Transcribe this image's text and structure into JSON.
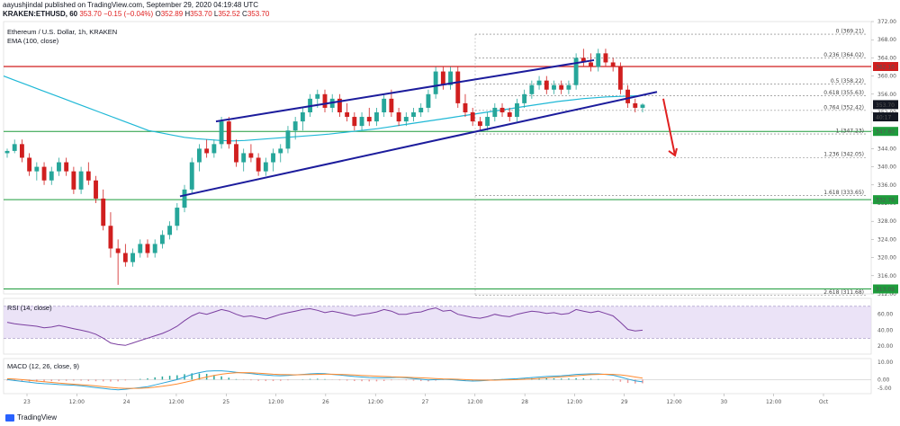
{
  "header": {
    "line1": "aayushjindal published on TradingView.com, September 29, 2020 04:19:48 UTC",
    "symbol": "KRAKEN:ETHUSD, 60",
    "price": "353.70",
    "change": "−0.15 (−0.04%)",
    "o_label": "O",
    "o": "352.89",
    "h_label": "H",
    "h": "353.70",
    "l_label": "L",
    "l": "352.52",
    "c_label": "C",
    "c": "353.70"
  },
  "main_title": "Ethereum / U.S. Dollar, 1h, KRAKEN",
  "ema_label": "EMA (100, close)",
  "rsi_label": "RSI (14, close)",
  "macd_label": "MACD (12, 26, close, 9)",
  "logo_text": "TradingView",
  "colors": {
    "up": "#26a69a",
    "down": "#d01f1f",
    "trend": "#1c1c9c",
    "ema": "#1fb8d6",
    "support": "#1e9c3c",
    "resistance": "#d01f1f",
    "rsi_band": "#e6dcf5",
    "macd": "#2aa4d8",
    "signal": "#ff8a30",
    "arrow": "#e02020"
  },
  "chart_data": {
    "type": "candlestick",
    "price_axis": {
      "min": 312,
      "max": 372,
      "ticks": [
        372,
        368,
        364,
        360,
        356,
        352,
        348,
        344,
        340,
        336,
        332,
        328,
        324,
        320,
        316,
        312
      ]
    },
    "price_ticks": [
      "372.00",
      "368.00",
      "364.00",
      "360.00",
      "356.00",
      "352.00",
      "348.00",
      "344.00",
      "340.00",
      "336.00",
      "332.00",
      "328.00",
      "324.00",
      "320.00",
      "316.00",
      "312.00"
    ],
    "x_labels": [
      "23",
      "12:00",
      "24",
      "12:00",
      "25",
      "12:00",
      "26",
      "12:00",
      "27",
      "12:00",
      "28",
      "12:00",
      "29",
      "12:00",
      "30",
      "12:00",
      "Oct"
    ],
    "candles": [
      [
        343,
        344,
        342,
        343.5
      ],
      [
        343.5,
        346,
        343,
        345
      ],
      [
        345,
        346,
        341,
        342
      ],
      [
        342,
        343,
        338,
        339
      ],
      [
        339,
        341,
        337,
        340
      ],
      [
        340,
        341,
        336,
        337
      ],
      [
        337,
        340,
        336,
        339
      ],
      [
        339,
        342,
        338,
        341
      ],
      [
        341,
        342,
        338,
        339
      ],
      [
        339,
        340,
        334,
        335
      ],
      [
        335,
        340,
        334,
        339
      ],
      [
        339,
        341,
        336,
        337
      ],
      [
        337,
        338,
        332,
        333
      ],
      [
        333,
        335,
        326,
        327
      ],
      [
        327,
        330,
        320,
        322
      ],
      [
        322,
        324,
        314,
        321
      ],
      [
        321,
        323,
        318,
        319
      ],
      [
        319,
        322,
        318,
        321
      ],
      [
        321,
        324,
        320,
        323
      ],
      [
        323,
        324,
        320,
        321
      ],
      [
        321,
        324,
        320,
        323
      ],
      [
        323,
        326,
        322,
        325
      ],
      [
        325,
        328,
        324,
        327
      ],
      [
        327,
        332,
        326,
        331
      ],
      [
        331,
        336,
        330,
        335
      ],
      [
        335,
        342,
        334,
        341
      ],
      [
        341,
        345,
        339,
        344
      ],
      [
        344,
        346,
        342,
        343
      ],
      [
        343,
        346,
        342,
        345
      ],
      [
        345,
        351,
        344,
        350
      ],
      [
        350,
        351,
        344,
        345
      ],
      [
        345,
        346,
        340,
        341
      ],
      [
        341,
        344,
        339,
        343
      ],
      [
        343,
        345,
        341,
        342
      ],
      [
        342,
        343,
        338,
        339
      ],
      [
        339,
        342,
        338,
        341
      ],
      [
        341,
        344,
        339,
        343
      ],
      [
        343,
        345,
        341,
        344
      ],
      [
        344,
        349,
        343,
        348
      ],
      [
        348,
        351,
        346,
        350
      ],
      [
        350,
        353,
        348,
        352
      ],
      [
        352,
        356,
        351,
        355
      ],
      [
        355,
        357,
        353,
        356
      ],
      [
        356,
        357,
        352,
        353
      ],
      [
        353,
        356,
        352,
        355
      ],
      [
        355,
        356,
        351,
        352
      ],
      [
        352,
        354,
        350,
        351
      ],
      [
        351,
        352,
        348,
        349
      ],
      [
        349,
        352,
        348,
        351
      ],
      [
        351,
        353,
        349,
        350
      ],
      [
        350,
        353,
        349,
        352
      ],
      [
        352,
        356,
        351,
        355
      ],
      [
        355,
        357,
        351,
        352
      ],
      [
        352,
        353,
        349,
        350
      ],
      [
        350,
        352,
        349,
        351
      ],
      [
        351,
        353,
        350,
        352
      ],
      [
        352,
        354,
        351,
        353
      ],
      [
        353,
        357,
        352,
        356
      ],
      [
        356,
        362,
        355,
        361
      ],
      [
        361,
        362,
        357,
        358
      ],
      [
        358,
        362,
        357,
        361
      ],
      [
        361,
        362,
        353,
        354
      ],
      [
        354,
        356,
        351,
        352
      ],
      [
        352,
        353,
        349,
        350
      ],
      [
        350,
        351,
        348,
        349
      ],
      [
        349,
        352,
        348,
        351
      ],
      [
        351,
        354,
        350,
        353
      ],
      [
        353,
        354,
        351,
        352
      ],
      [
        352,
        353,
        350,
        351
      ],
      [
        351,
        355,
        350,
        354
      ],
      [
        354,
        357,
        353,
        356
      ],
      [
        356,
        359,
        355,
        358
      ],
      [
        358,
        360,
        357,
        359
      ],
      [
        359,
        360,
        356,
        357
      ],
      [
        357,
        359,
        356,
        358
      ],
      [
        358,
        359,
        356,
        357
      ],
      [
        357,
        359,
        356,
        358
      ],
      [
        358,
        365,
        357,
        364
      ],
      [
        364,
        366,
        362,
        363
      ],
      [
        363,
        365,
        361,
        362
      ],
      [
        362,
        366,
        361,
        365
      ],
      [
        365,
        366,
        362,
        363
      ],
      [
        363,
        364,
        361,
        362
      ],
      [
        362,
        363,
        356,
        357
      ],
      [
        357,
        358,
        353,
        354
      ],
      [
        354,
        355,
        352,
        353
      ],
      [
        353,
        354,
        352,
        353.7
      ]
    ],
    "ema_100": [
      360,
      359,
      358,
      357,
      356,
      355,
      354,
      353,
      352,
      351,
      350,
      349,
      348,
      347.5,
      347,
      346.5,
      346.2,
      346,
      345.8,
      345.7,
      345.8,
      346,
      346.2,
      346.4,
      346.6,
      346.8,
      347,
      347.2,
      347.5,
      347.8,
      348.1,
      348.4,
      348.8,
      349.2,
      349.6,
      350,
      350.4,
      350.8,
      351.2,
      351.6,
      352,
      352.4,
      352.8,
      353.2,
      353.6,
      354,
      354.4,
      354.7,
      355,
      355.2,
      355.4,
      355.5,
      355.6,
      355.7
    ],
    "trend_lines": {
      "upper": [
        [
          350,
          240
        ],
        [
          363.5,
          660
        ]
      ],
      "lower": [
        [
          333.5,
          200
        ],
        [
          356.5,
          730
        ]
      ]
    },
    "horizontal_levels": {
      "resistance": 362.1,
      "support_1": 347.8,
      "support_2": 332.76,
      "support_3": 313.09
    },
    "fibonacci": [
      {
        "label": "0 (369.21)",
        "value": 369.21
      },
      {
        "label": "0.236 (364.02)",
        "value": 364.02
      },
      {
        "label": "0.5 (358.22)",
        "value": 358.22
      },
      {
        "label": "0.618 (355.63)",
        "value": 355.63
      },
      {
        "label": "0.764 (352.42)",
        "value": 352.42
      },
      {
        "label": "1 (347.23)",
        "value": 347.23
      },
      {
        "label": "1.236 (342.05)",
        "value": 342.05
      },
      {
        "label": "1.618 (333.65)",
        "value": 333.65
      },
      {
        "label": "2.618 (311.68)",
        "value": 311.68
      }
    ],
    "price_badges": [
      {
        "text": "362.10",
        "value": 362.1,
        "color": "#d01f1f"
      },
      {
        "text": "353.70",
        "value": 353.7,
        "color": "#131722"
      },
      {
        "text": "40:17",
        "value": 351.0,
        "color": "#131722"
      },
      {
        "text": "347.80",
        "value": 347.8,
        "color": "#1e9c3c"
      },
      {
        "text": "332.76",
        "value": 332.76,
        "color": "#1e9c3c"
      },
      {
        "text": "313.09",
        "value": 313.09,
        "color": "#1e9c3c"
      }
    ],
    "rsi": {
      "ticks": [
        "60.00",
        "40.00",
        "20.00"
      ],
      "tick_values": [
        60,
        40,
        20
      ],
      "band": [
        30,
        70
      ],
      "values": [
        50,
        48,
        47,
        46,
        45,
        43,
        44,
        46,
        44,
        42,
        40,
        38,
        35,
        30,
        24,
        22,
        21,
        24,
        27,
        30,
        33,
        36,
        40,
        45,
        52,
        58,
        62,
        60,
        63,
        66,
        64,
        60,
        57,
        58,
        56,
        54,
        57,
        60,
        62,
        64,
        66,
        67,
        65,
        62,
        64,
        62,
        60,
        58,
        60,
        61,
        63,
        66,
        64,
        60,
        60,
        62,
        63,
        66,
        68,
        64,
        65,
        60,
        58,
        56,
        55,
        57,
        60,
        58,
        57,
        60,
        62,
        64,
        63,
        61,
        62,
        60,
        61,
        66,
        64,
        62,
        64,
        61,
        58,
        50,
        41,
        39,
        40
      ]
    },
    "macd": {
      "ticks": [
        "10.00",
        "0.00",
        "-5.00"
      ],
      "tick_values": [
        10,
        0,
        -5
      ],
      "macd_line": [
        0,
        -0.5,
        -1,
        -1.5,
        -2,
        -2.3,
        -2.5,
        -2.8,
        -3,
        -3.2,
        -3.5,
        -4,
        -4.5,
        -5,
        -5.5,
        -5.8,
        -5.5,
        -5,
        -4.5,
        -4,
        -3,
        -2,
        -1,
        0,
        1.5,
        3,
        4,
        4.8,
        5,
        5,
        4.7,
        4.2,
        3.8,
        3.5,
        3,
        2.6,
        2.3,
        2.2,
        2.4,
        2.7,
        3,
        3.3,
        3.5,
        3.4,
        3,
        2.6,
        2.2,
        1.8,
        1.5,
        1.2,
        1,
        1,
        1.2,
        1.4,
        1,
        0.6,
        0.2,
        -0.2,
        0,
        0.2,
        0,
        -0.3,
        -0.6,
        -0.8,
        -0.7,
        -0.4,
        -0.1,
        0.1,
        0.3,
        0.5,
        0.8,
        1.2,
        1.5,
        1.8,
        2,
        2.2,
        2.5,
        3,
        3.2,
        3.3,
        3.3,
        3,
        2.5,
        1.5,
        0.3,
        -0.7,
        -1.3
      ],
      "signal_line": [
        0.5,
        0.3,
        0,
        -0.4,
        -0.8,
        -1.2,
        -1.6,
        -2,
        -2.3,
        -2.6,
        -2.9,
        -3.2,
        -3.6,
        -4,
        -4.4,
        -4.8,
        -5,
        -5,
        -4.9,
        -4.7,
        -4.3,
        -3.8,
        -3.2,
        -2.5,
        -1.6,
        -0.6,
        0.5,
        1.5,
        2.4,
        3.1,
        3.6,
        3.9,
        4,
        3.9,
        3.7,
        3.4,
        3.1,
        2.9,
        2.8,
        2.7,
        2.8,
        2.9,
        3,
        3.1,
        3.1,
        3,
        2.8,
        2.6,
        2.4,
        2.2,
        2,
        1.8,
        1.6,
        1.5,
        1.4,
        1.2,
        1,
        0.8,
        0.6,
        0.4,
        0.3,
        0.2,
        0,
        -0.2,
        -0.3,
        -0.3,
        -0.3,
        -0.2,
        -0.1,
        0,
        0.2,
        0.4,
        0.7,
        1,
        1.3,
        1.6,
        1.9,
        2.2,
        2.5,
        2.8,
        3,
        3.1,
        3,
        2.7,
        2.2,
        1.5,
        0.8
      ]
    }
  }
}
